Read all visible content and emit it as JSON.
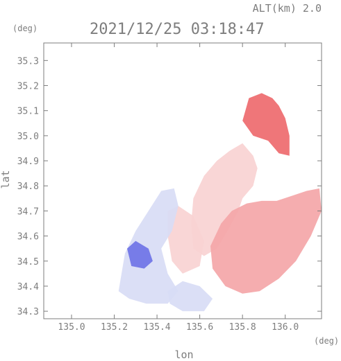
{
  "chart_data": {
    "type": "heatmap",
    "title": "2021/12/25 03:18:47",
    "altitude_label": "ALT(km) 2.0",
    "xlabel": "lon",
    "ylabel": "lat",
    "x_unit": "(deg)",
    "y_unit": "(deg)",
    "xlim": [
      134.87,
      136.17
    ],
    "ylim": [
      34.27,
      35.37
    ],
    "xticks": [
      135.0,
      135.2,
      135.4,
      135.6,
      135.8,
      136.0
    ],
    "xtick_labels": [
      "135.0",
      "135.2",
      "135.4",
      "135.6",
      "135.8",
      "136.0"
    ],
    "yticks": [
      34.3,
      34.4,
      34.5,
      34.6,
      34.7,
      34.8,
      34.9,
      35.0,
      35.1,
      35.2,
      35.3
    ],
    "ytick_labels": [
      "34.3",
      "34.4",
      "34.5",
      "34.6",
      "34.7",
      "34.8",
      "34.9",
      "35.0",
      "35.1",
      "35.2",
      "35.3"
    ],
    "colors": {
      "positive_strong": "#ee6a6e",
      "positive_mid": "#f4a6a8",
      "positive_light": "#f9d2d2",
      "negative_light": "#d8dcf5",
      "negative_strong": "#6f73e6",
      "axis": "#7d7d7d"
    },
    "regions": [
      {
        "name": "northeast-strong-positive",
        "level": 0.9,
        "polygon": [
          [
            135.83,
            35.15
          ],
          [
            135.89,
            35.17
          ],
          [
            135.94,
            35.15
          ],
          [
            135.97,
            35.12
          ],
          [
            136.0,
            35.07
          ],
          [
            136.02,
            35.0
          ],
          [
            136.02,
            34.92
          ],
          [
            135.97,
            34.93
          ],
          [
            135.92,
            34.98
          ],
          [
            135.85,
            35.0
          ],
          [
            135.8,
            35.06
          ]
        ]
      },
      {
        "name": "north-light-positive-band",
        "level": 0.45,
        "polygon": [
          [
            135.57,
            34.55
          ],
          [
            135.56,
            34.65
          ],
          [
            135.57,
            34.75
          ],
          [
            135.62,
            34.84
          ],
          [
            135.68,
            34.9
          ],
          [
            135.74,
            34.94
          ],
          [
            135.8,
            34.97
          ],
          [
            135.85,
            34.92
          ],
          [
            135.87,
            34.87
          ],
          [
            135.85,
            34.8
          ],
          [
            135.8,
            34.75
          ],
          [
            135.78,
            34.7
          ],
          [
            135.73,
            34.62
          ],
          [
            135.68,
            34.55
          ],
          [
            135.62,
            34.52
          ]
        ]
      },
      {
        "name": "east-arc-positive",
        "level": 0.6,
        "polygon": [
          [
            135.75,
            34.7
          ],
          [
            135.82,
            34.73
          ],
          [
            135.89,
            34.74
          ],
          [
            135.96,
            34.74
          ],
          [
            136.03,
            34.76
          ],
          [
            136.1,
            34.78
          ],
          [
            136.16,
            34.79
          ],
          [
            136.17,
            34.7
          ],
          [
            136.12,
            34.6
          ],
          [
            136.05,
            34.5
          ],
          [
            135.97,
            34.43
          ],
          [
            135.88,
            34.38
          ],
          [
            135.8,
            34.37
          ],
          [
            135.72,
            34.4
          ],
          [
            135.66,
            34.47
          ],
          [
            135.65,
            34.56
          ],
          [
            135.7,
            34.65
          ]
        ]
      },
      {
        "name": "central-light-positive",
        "level": 0.3,
        "polygon": [
          [
            135.45,
            34.7
          ],
          [
            135.5,
            34.72
          ],
          [
            135.57,
            34.68
          ],
          [
            135.62,
            34.58
          ],
          [
            135.6,
            34.48
          ],
          [
            135.52,
            34.45
          ],
          [
            135.47,
            34.5
          ],
          [
            135.45,
            34.6
          ]
        ]
      },
      {
        "name": "west-negative",
        "level": -0.35,
        "polygon": [
          [
            135.22,
            34.38
          ],
          [
            135.25,
            34.53
          ],
          [
            135.3,
            34.62
          ],
          [
            135.36,
            34.7
          ],
          [
            135.42,
            34.78
          ],
          [
            135.48,
            34.79
          ],
          [
            135.5,
            34.72
          ],
          [
            135.47,
            34.62
          ],
          [
            135.42,
            34.55
          ],
          [
            135.45,
            34.45
          ],
          [
            135.5,
            34.38
          ],
          [
            135.45,
            34.33
          ],
          [
            135.35,
            34.33
          ],
          [
            135.27,
            34.35
          ]
        ]
      },
      {
        "name": "southwest-strong-negative",
        "level": -0.75,
        "polygon": [
          [
            135.26,
            34.55
          ],
          [
            135.3,
            34.58
          ],
          [
            135.36,
            34.55
          ],
          [
            135.38,
            34.5
          ],
          [
            135.34,
            34.47
          ],
          [
            135.28,
            34.48
          ]
        ]
      },
      {
        "name": "south-negative",
        "level": -0.45,
        "polygon": [
          [
            135.45,
            34.38
          ],
          [
            135.52,
            34.42
          ],
          [
            135.6,
            34.4
          ],
          [
            135.66,
            34.35
          ],
          [
            135.62,
            34.3
          ],
          [
            135.52,
            34.3
          ],
          [
            135.46,
            34.33
          ]
        ]
      }
    ]
  }
}
